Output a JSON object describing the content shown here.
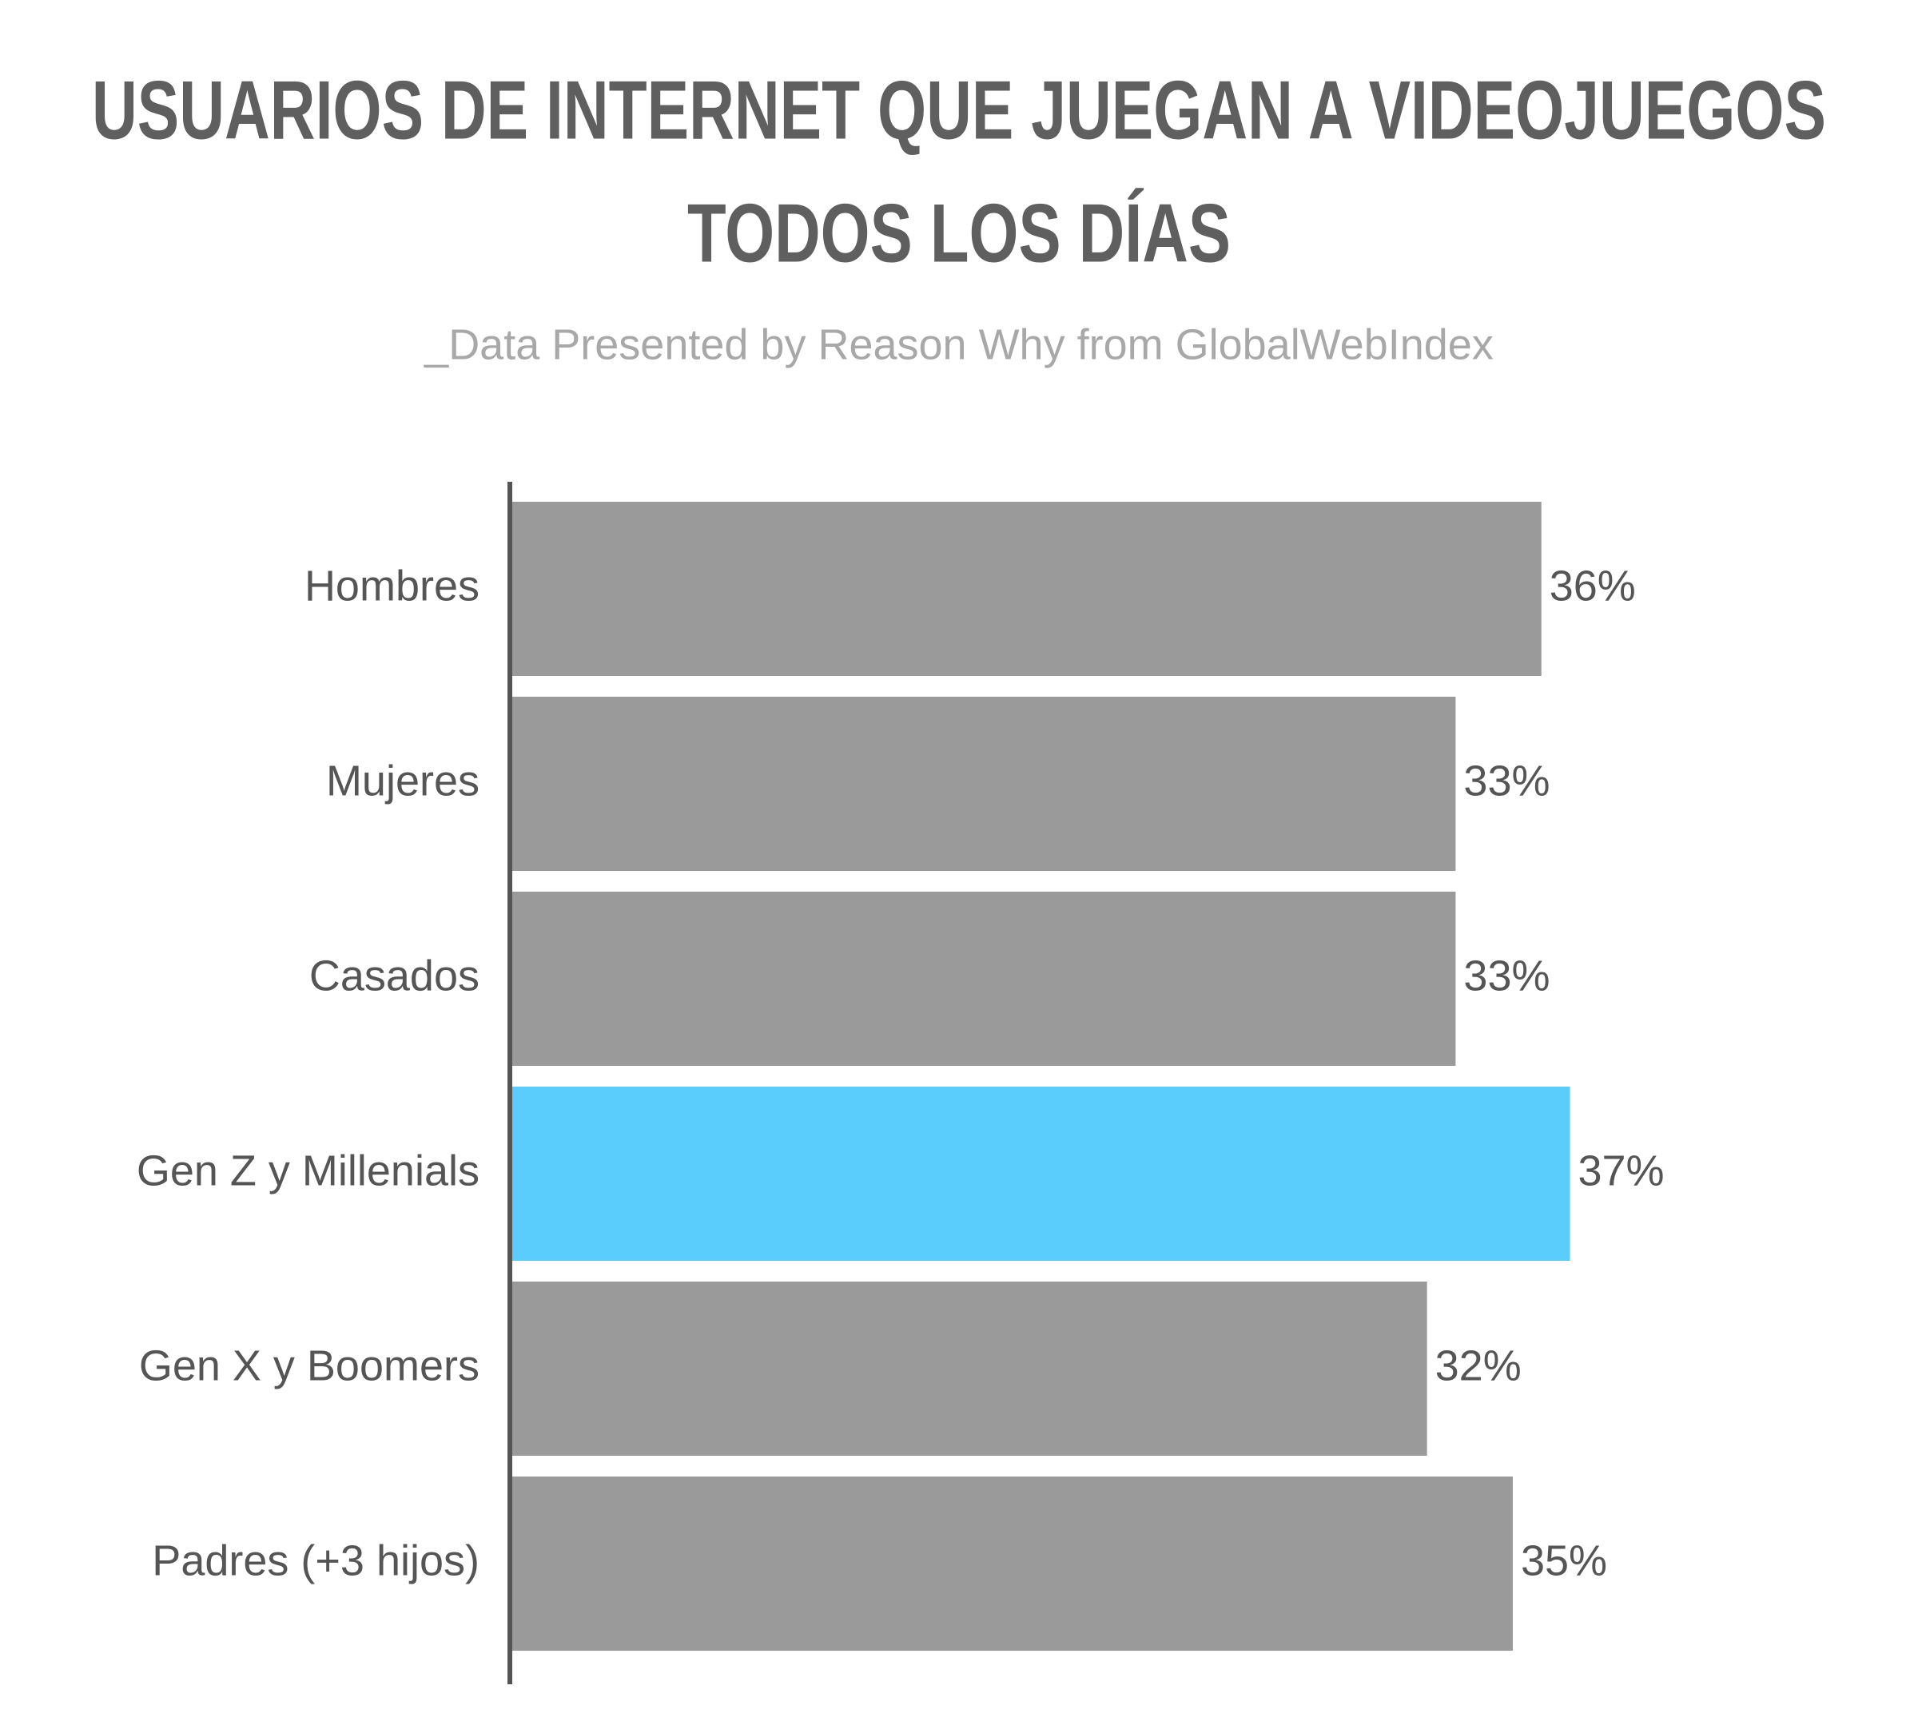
{
  "chart_data": {
    "type": "bar",
    "orientation": "horizontal",
    "title": [
      "USUARIOS DE INTERNET QUE JUEGAN A VIDEOJUEGOS",
      "TODOS LOS DÍAS"
    ],
    "subtitle": "_Data Presented by Reason Why from GlobalWebIndex",
    "categories": [
      "Hombres",
      "Mujeres",
      "Casados",
      "Gen Z y Millenials",
      "Gen X y Boomers",
      "Padres (+3 hijos)"
    ],
    "values": [
      36,
      33,
      33,
      37,
      32,
      35
    ],
    "value_labels": [
      "36%",
      "33%",
      "33%",
      "37%",
      "32%",
      "35%"
    ],
    "colors": [
      "#9a9a9a",
      "#9a9a9a",
      "#9a9a9a",
      "#5bcdfd",
      "#9a9a9a",
      "#9a9a9a"
    ]
  }
}
